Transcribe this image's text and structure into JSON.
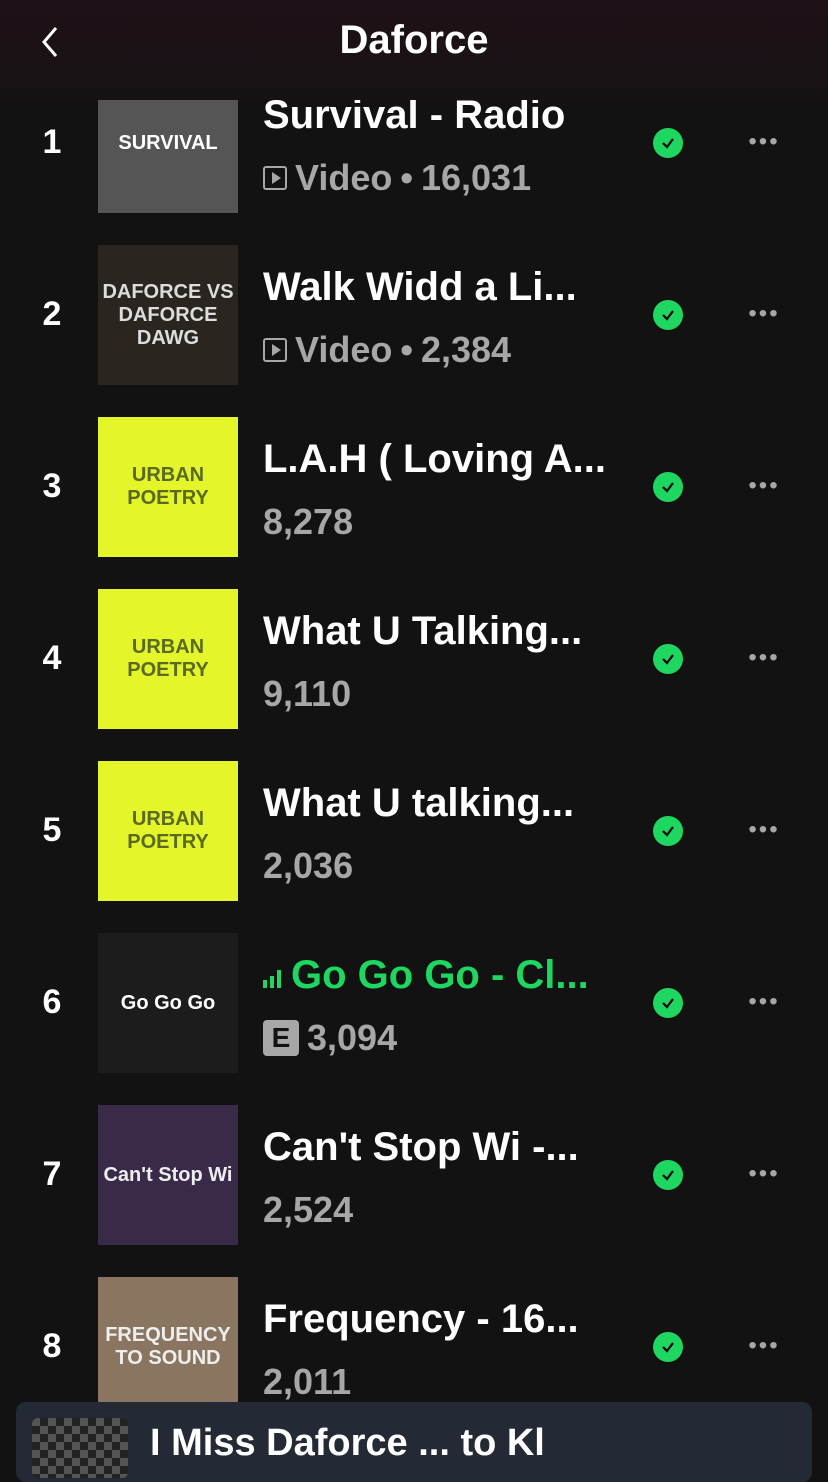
{
  "header": {
    "title": "Daforce"
  },
  "colors": {
    "accent": "#1ed760",
    "background": "#121212",
    "subtext": "#a7a7a7"
  },
  "tracks": [
    {
      "rank": "1",
      "title": "Survival - Radio",
      "video_label": "Video",
      "plays": "16,031",
      "art_text": "SURVIVAL",
      "art_bg": "#555",
      "art_fg": "#fff"
    },
    {
      "rank": "2",
      "title": "Walk Widd a Li...",
      "video_label": "Video",
      "plays": "2,384",
      "art_text": "DAFORCE VS DAFORCE DAWG",
      "art_bg": "#2b2520",
      "art_fg": "#ddd"
    },
    {
      "rank": "3",
      "title": "L.A.H ( Loving A...",
      "plays": "8,278",
      "art_text": "URBAN POETRY",
      "art_bg": "#e4f52a",
      "art_fg": "#5a6a20"
    },
    {
      "rank": "4",
      "title": "What U Talking...",
      "plays": "9,110",
      "art_text": "URBAN POETRY",
      "art_bg": "#e4f52a",
      "art_fg": "#5a6a20"
    },
    {
      "rank": "5",
      "title": "What U talking...",
      "plays": "2,036",
      "art_text": "URBAN POETRY",
      "art_bg": "#e4f52a",
      "art_fg": "#5a6a20"
    },
    {
      "rank": "6",
      "title": "Go Go Go - Cl...",
      "explicit": "E",
      "plays": "3,094",
      "playing": true,
      "art_text": "Go Go Go",
      "art_bg": "#1c1c1c",
      "art_fg": "#fff"
    },
    {
      "rank": "7",
      "title": "Can't Stop Wi -...",
      "plays": "2,524",
      "art_text": "Can't Stop Wi",
      "art_bg": "#3a2a4a",
      "art_fg": "#eee"
    },
    {
      "rank": "8",
      "title": "Frequency - 16...",
      "plays": "2,011",
      "art_text": "FREQUENCY TO SOUND",
      "art_bg": "#8a7560",
      "art_fg": "#eee"
    }
  ],
  "mini_player": {
    "title": "I Miss Daforce ... to Kl"
  }
}
